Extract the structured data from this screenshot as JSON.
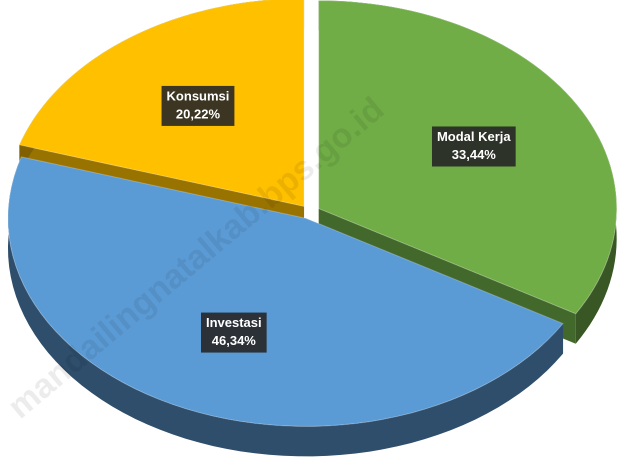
{
  "chart_data": {
    "type": "pie",
    "categories": [
      "Modal Kerja",
      "Investasi",
      "Konsumsi"
    ],
    "values": [
      33.44,
      46.34,
      20.22
    ],
    "value_labels": [
      "33,44%",
      "46,34%",
      "20,22%"
    ],
    "colors": [
      "#70ad47",
      "#5b9bd5",
      "#ffc000"
    ],
    "watermark": "mandailingnatalkab.bps.go.id"
  }
}
